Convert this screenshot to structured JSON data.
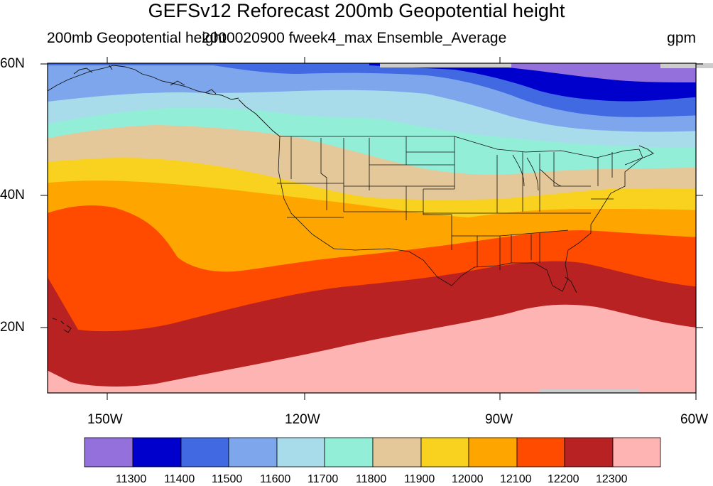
{
  "title": "GEFSv12 Reforecast 200mb Geopotential height",
  "subtitle_left": "200mb Geopotential height",
  "subtitle_center": "2000020900 fweek4_max Ensemble_Average",
  "units": "gpm",
  "lat_labels": [
    "60N",
    "40N",
    "20N"
  ],
  "lon_labels": [
    "150W",
    "120W",
    "90W",
    "60W"
  ],
  "colorbar": {
    "colors": [
      "#9370db",
      "#0000cd",
      "#4169e1",
      "#7ea6ec",
      "#a9dcea",
      "#93eed8",
      "#e4c89a",
      "#f8d21e",
      "#ffa500",
      "#ff4b00",
      "#b82222",
      "#ffb4b4"
    ],
    "labels": [
      "11300",
      "11400",
      "11500",
      "11600",
      "11700",
      "11800",
      "11900",
      "12000",
      "12100",
      "12200",
      "12300"
    ]
  }
}
